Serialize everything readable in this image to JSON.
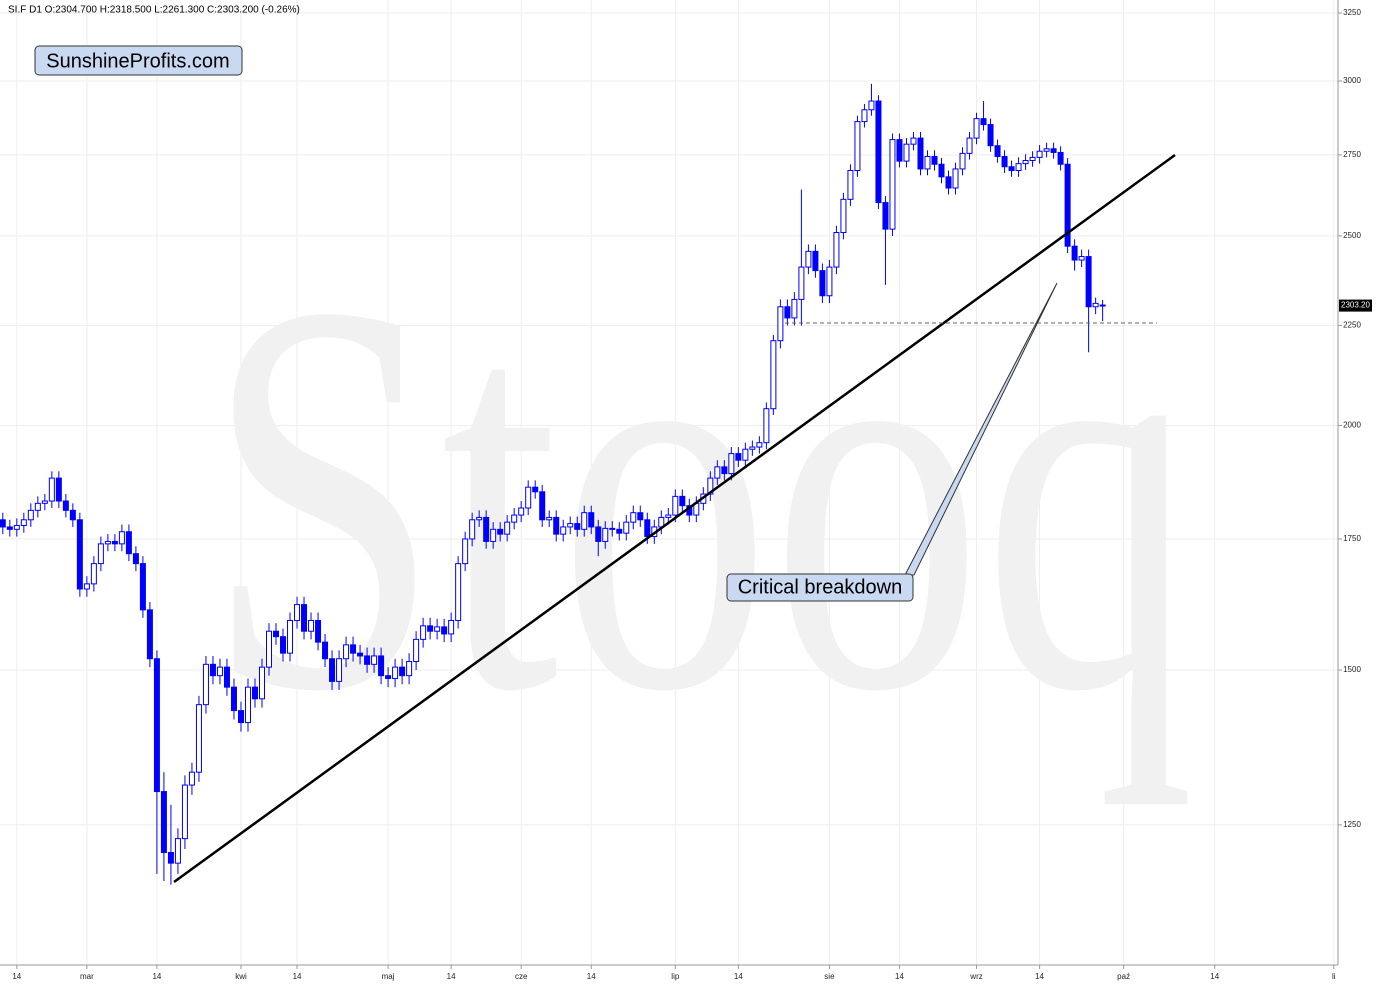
{
  "chart_data": {
    "type": "candlestick",
    "title": "SI.F  D1  O:2304.700  H:2318.500  L:2261.300  C:2303.200  (-0.26%)",
    "logo": "SunshineProfits.com",
    "watermark": "Stooq",
    "annotation": "Critical breakdown",
    "color": "#0000ff",
    "log_scale": true,
    "grid": true,
    "ylim": [
      1060,
      3300
    ],
    "yticks": [
      1250,
      1500,
      1750,
      2000,
      2250,
      2500,
      2750,
      3000,
      3250
    ],
    "last_price": {
      "value": 2303.2,
      "label": "2303.20"
    },
    "categories": [
      null,
      null,
      "14",
      null,
      null,
      null,
      null,
      null,
      null,
      null,
      null,
      null,
      "mar",
      null,
      null,
      null,
      null,
      null,
      null,
      null,
      null,
      null,
      "14",
      null,
      null,
      null,
      null,
      null,
      null,
      null,
      null,
      null,
      null,
      null,
      "kwi",
      null,
      null,
      null,
      null,
      null,
      null,
      null,
      "14",
      null,
      null,
      null,
      null,
      null,
      null,
      null,
      null,
      null,
      null,
      null,
      null,
      "maj",
      null,
      null,
      null,
      null,
      null,
      null,
      null,
      null,
      "14",
      null,
      null,
      null,
      null,
      null,
      null,
      null,
      null,
      null,
      "cze",
      null,
      null,
      null,
      null,
      null,
      null,
      null,
      null,
      null,
      "14",
      null,
      null,
      null,
      null,
      null,
      null,
      null,
      null,
      null,
      null,
      null,
      "lip",
      null,
      null,
      null,
      null,
      null,
      null,
      null,
      null,
      "14",
      null,
      null,
      null,
      null,
      null,
      null,
      null,
      null,
      null,
      null,
      null,
      null,
      "sie",
      null,
      null,
      null,
      null,
      null,
      null,
      null,
      null,
      null,
      "14",
      null,
      null,
      null,
      null,
      null,
      null,
      null,
      null,
      null,
      null,
      "wrz",
      null,
      null,
      null,
      null,
      null,
      null,
      null,
      null,
      "14",
      null,
      null,
      null,
      null,
      null,
      null,
      null,
      null,
      null,
      null,
      null,
      "paź",
      null,
      null,
      null,
      null,
      null,
      null,
      null,
      null,
      null,
      null,
      null,
      null,
      "14",
      null,
      null,
      null,
      null,
      null,
      null,
      null,
      null,
      null,
      null,
      null,
      null,
      null,
      null,
      null,
      null,
      "li"
    ],
    "open": [
      1790,
      1775,
      1770,
      1778,
      1790,
      1810,
      1825,
      1830,
      1880,
      1830,
      1810,
      1790,
      1650,
      1660,
      1700,
      1740,
      1745,
      1740,
      1765,
      1720,
      1700,
      1610,
      1520,
      1300,
      1210,
      1195,
      1230,
      1310,
      1330,
      1440,
      1510,
      1490,
      1505,
      1470,
      1430,
      1410,
      1470,
      1450,
      1505,
      1570,
      1560,
      1530,
      1590,
      1620,
      1570,
      1590,
      1550,
      1520,
      1480,
      1520,
      1545,
      1530,
      1525,
      1510,
      1525,
      1490,
      1485,
      1505,
      1490,
      1515,
      1555,
      1580,
      1570,
      1578,
      1565,
      1590,
      1700,
      1750,
      1790,
      1795,
      1745,
      1770,
      1760,
      1785,
      1800,
      1815,
      1860,
      1850,
      1790,
      1795,
      1760,
      1775,
      1782,
      1770,
      1805,
      1775,
      1745,
      1772,
      1770,
      1762,
      1785,
      1805,
      1790,
      1755,
      1775,
      1795,
      1800,
      1840,
      1820,
      1800,
      1825,
      1845,
      1880,
      1905,
      1890,
      1935,
      1920,
      1945,
      1950,
      1960,
      2040,
      2210,
      2300,
      2270,
      2320,
      2410,
      2455,
      2400,
      2330,
      2410,
      2510,
      2610,
      2700,
      2860,
      2900,
      2930,
      2600,
      2520,
      2800,
      2730,
      2785,
      2805,
      2705,
      2745,
      2720,
      2680,
      2645,
      2705,
      2755,
      2805,
      2870,
      2850,
      2780,
      2745,
      2712,
      2700,
      2722,
      2732,
      2742,
      2762,
      2770,
      2758,
      2720,
      2470,
      2430,
      2440,
      2300,
      2304.7,
      null,
      null,
      null,
      null,
      null,
      null,
      null,
      null,
      null,
      null,
      null,
      null,
      null,
      null,
      null,
      null,
      null,
      null,
      null,
      null,
      null,
      null,
      null,
      null,
      null,
      null,
      null,
      null,
      null,
      null,
      null,
      null,
      null
    ],
    "high": [
      1805,
      1790,
      1793,
      1805,
      1825,
      1840,
      1845,
      1895,
      1895,
      1845,
      1825,
      1805,
      1675,
      1715,
      1755,
      1760,
      1760,
      1780,
      1780,
      1735,
      1715,
      1625,
      1535,
      1330,
      1280,
      1245,
      1325,
      1345,
      1455,
      1525,
      1525,
      1520,
      1520,
      1485,
      1445,
      1485,
      1485,
      1520,
      1585,
      1585,
      1575,
      1605,
      1635,
      1635,
      1605,
      1605,
      1565,
      1535,
      1535,
      1560,
      1560,
      1545,
      1540,
      1540,
      1540,
      1505,
      1520,
      1520,
      1530,
      1570,
      1595,
      1595,
      1593,
      1593,
      1605,
      1715,
      1765,
      1805,
      1810,
      1810,
      1785,
      1785,
      1800,
      1815,
      1830,
      1875,
      1875,
      1865,
      1810,
      1810,
      1790,
      1797,
      1797,
      1820,
      1820,
      1790,
      1787,
      1787,
      1785,
      1800,
      1820,
      1820,
      1805,
      1790,
      1810,
      1815,
      1855,
      1855,
      1835,
      1840,
      1860,
      1895,
      1920,
      1920,
      1950,
      1950,
      1960,
      1965,
      1975,
      2055,
      2225,
      2320,
      2320,
      2340,
      2640,
      2475,
      2475,
      2420,
      2430,
      2530,
      2630,
      2720,
      2880,
      2920,
      2990,
      2950,
      2620,
      2820,
      2820,
      2805,
      2825,
      2825,
      2765,
      2765,
      2740,
      2700,
      2725,
      2775,
      2825,
      2890,
      2930,
      2870,
      2800,
      2765,
      2732,
      2742,
      2752,
      2762,
      2782,
      2790,
      2790,
      2778,
      2740,
      2490,
      2460,
      2460,
      2325,
      2318.5,
      null,
      null,
      null,
      null,
      null,
      null,
      null,
      null,
      null,
      null,
      null,
      null,
      null,
      null,
      null,
      null,
      null,
      null,
      null,
      null,
      null,
      null,
      null,
      null,
      null,
      null,
      null,
      null,
      null,
      null,
      null,
      null,
      null
    ],
    "low": [
      1760,
      1755,
      1755,
      1763,
      1775,
      1795,
      1810,
      1815,
      1815,
      1795,
      1775,
      1635,
      1635,
      1645,
      1685,
      1725,
      1725,
      1725,
      1705,
      1685,
      1595,
      1505,
      1180,
      1170,
      1165,
      1180,
      1215,
      1295,
      1315,
      1425,
      1475,
      1475,
      1455,
      1415,
      1395,
      1395,
      1435,
      1435,
      1490,
      1545,
      1515,
      1515,
      1575,
      1555,
      1555,
      1535,
      1505,
      1465,
      1465,
      1505,
      1515,
      1510,
      1495,
      1495,
      1475,
      1470,
      1470,
      1475,
      1475,
      1500,
      1540,
      1555,
      1555,
      1550,
      1550,
      1575,
      1685,
      1735,
      1775,
      1730,
      1730,
      1745,
      1745,
      1770,
      1785,
      1800,
      1835,
      1775,
      1775,
      1745,
      1745,
      1760,
      1755,
      1755,
      1760,
      1715,
      1730,
      1755,
      1747,
      1747,
      1770,
      1775,
      1740,
      1740,
      1760,
      1780,
      1785,
      1805,
      1785,
      1785,
      1810,
      1830,
      1865,
      1875,
      1875,
      1905,
      1905,
      1930,
      1935,
      1945,
      2025,
      2190,
      2250,
      2250,
      2250,
      2390,
      2380,
      2310,
      2310,
      2390,
      2490,
      2590,
      2680,
      2840,
      2880,
      2580,
      2360,
      2500,
      2710,
      2710,
      2765,
      2685,
      2685,
      2700,
      2660,
      2625,
      2625,
      2685,
      2735,
      2785,
      2830,
      2760,
      2725,
      2692,
      2680,
      2680,
      2702,
      2712,
      2722,
      2742,
      2738,
      2700,
      2450,
      2400,
      2410,
      2180,
      2280,
      2261.3,
      null,
      null,
      null,
      null,
      null,
      null,
      null,
      null,
      null,
      null,
      null,
      null,
      null,
      null,
      null,
      null,
      null,
      null,
      null,
      null,
      null,
      null,
      null,
      null,
      null,
      null,
      null,
      null,
      null,
      null,
      null,
      null,
      null
    ],
    "close": [
      1775,
      1770,
      1778,
      1790,
      1810,
      1825,
      1830,
      1880,
      1830,
      1810,
      1790,
      1650,
      1660,
      1700,
      1740,
      1745,
      1740,
      1765,
      1720,
      1700,
      1610,
      1520,
      1300,
      1210,
      1195,
      1230,
      1310,
      1330,
      1440,
      1510,
      1490,
      1505,
      1470,
      1430,
      1410,
      1470,
      1450,
      1505,
      1570,
      1560,
      1530,
      1590,
      1620,
      1570,
      1590,
      1550,
      1520,
      1480,
      1520,
      1545,
      1530,
      1525,
      1510,
      1525,
      1490,
      1485,
      1505,
      1490,
      1515,
      1555,
      1580,
      1570,
      1578,
      1565,
      1590,
      1700,
      1750,
      1790,
      1795,
      1745,
      1770,
      1760,
      1785,
      1800,
      1815,
      1860,
      1850,
      1790,
      1795,
      1760,
      1775,
      1782,
      1770,
      1805,
      1775,
      1745,
      1772,
      1770,
      1762,
      1785,
      1805,
      1790,
      1755,
      1775,
      1795,
      1800,
      1840,
      1820,
      1800,
      1825,
      1845,
      1880,
      1905,
      1890,
      1935,
      1920,
      1945,
      1950,
      1960,
      2040,
      2210,
      2300,
      2270,
      2320,
      2410,
      2455,
      2400,
      2330,
      2410,
      2510,
      2610,
      2700,
      2860,
      2900,
      2930,
      2600,
      2520,
      2800,
      2730,
      2785,
      2805,
      2705,
      2745,
      2720,
      2680,
      2645,
      2705,
      2755,
      2805,
      2870,
      2850,
      2780,
      2745,
      2712,
      2700,
      2722,
      2732,
      2742,
      2762,
      2770,
      2758,
      2720,
      2470,
      2430,
      2440,
      2300,
      2309.2,
      2303.2,
      null,
      null,
      null,
      null,
      null,
      null,
      null,
      null,
      null,
      null,
      null,
      null,
      null,
      null,
      null,
      null,
      null,
      null,
      null,
      null,
      null,
      null,
      null,
      null,
      null,
      null,
      null,
      null,
      null,
      null,
      null,
      null,
      null
    ]
  }
}
